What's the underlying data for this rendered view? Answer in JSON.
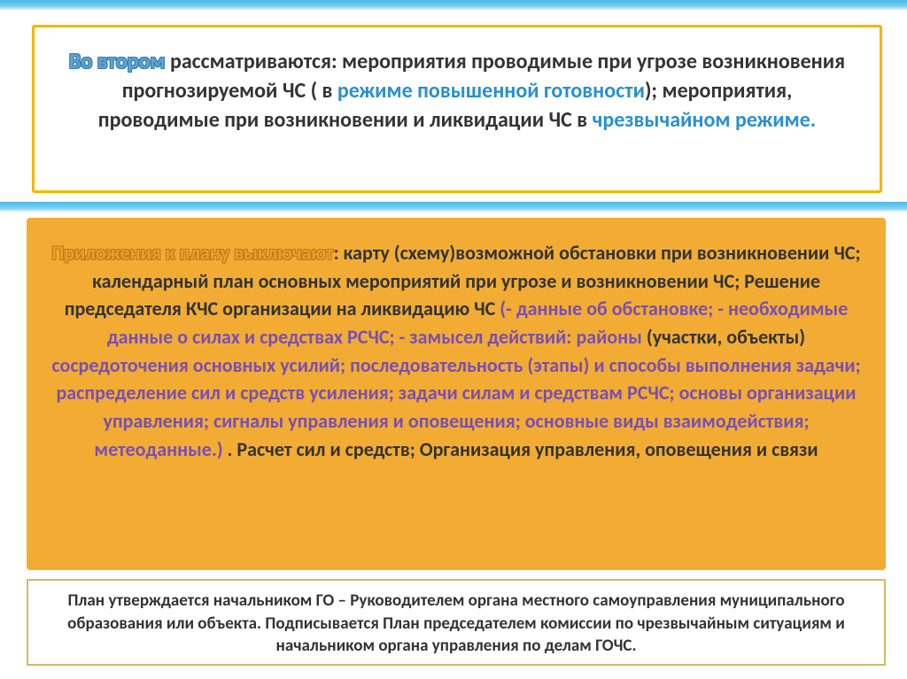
{
  "colors": {
    "orange_box": "#f2ac34",
    "orange_border": "#f7b500",
    "light_border": "#d8b860",
    "wave": "#4db8e8",
    "link_blue": "#2a8fd0",
    "purple": "#7a4fb0",
    "outline_blue": "#5aa5d6",
    "outline_orange": "#e8a030",
    "text": "#333333",
    "background": "#ffffff"
  },
  "typography": {
    "family": "Calibri, Arial, sans-serif",
    "box1_size": 24,
    "box2_size": 22,
    "box3_size": 19
  },
  "box1": {
    "lead": "Во втором",
    "t1": " рассматриваются:   мероприятия проводимые при угрозе возникновения прогнозируемой ЧС ( в ",
    "h1": "режиме повышенной готовности",
    "t2": "); мероприятия, проводимые при возникновении и ликвидации ЧС в ",
    "h2": "чрезвычайном режиме."
  },
  "box2": {
    "lead": "Приложения к плану выключают",
    "t1": ": карту (схему)возможной обстановки при возникновении ЧС; календарный план основных мероприятий при угрозе и возникновении ЧС; Решение председателя КЧС организации на ликвидацию ЧС ",
    "p1": "(- данные об обстановке; - необходимые данные о силах и средствах РСЧС; - замысел действий: районы ",
    "t2": "(участки, объекты)",
    "p2": " сосредоточения основных усилий; последовательность (этапы) и способы выполнения задачи; распределение сил и средств усиления; задачи силам и средствам РСЧС; основы организации управления; сигналы управления и оповещения; основные виды взаимодействия; метеоданные.) ",
    "t3": ". Расчет сил и средств; Организация управления, оповещения и связи"
  },
  "box3": {
    "text": "План утверждается начальником ГО  – Руководителем  органа местного самоуправления муниципального образования или объекта. Подписывается План председателем комиссии по чрезвычайным ситуациям и начальником органа управления по делам  ГОЧС."
  }
}
